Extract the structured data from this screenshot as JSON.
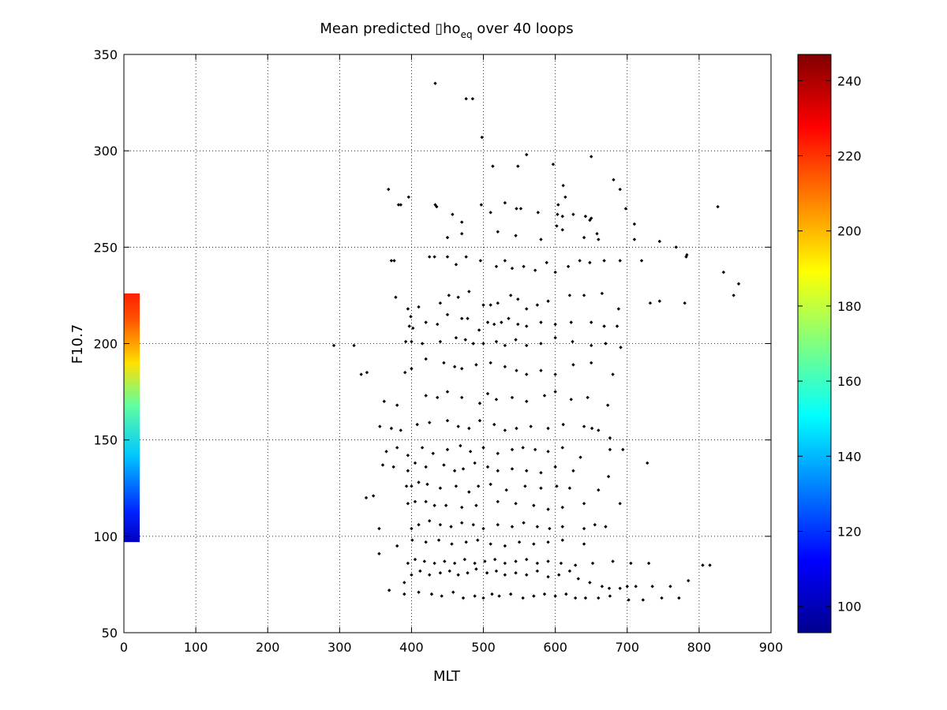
{
  "figure": {
    "title_main": "Mean predicted ▯ho",
    "title_subscript": "eq",
    "title_rest": " over 40 loops"
  },
  "chart_data": {
    "type": "scatter",
    "title": "Mean predicted ▯ho_eq over 40 loops",
    "xlabel": "MLT",
    "ylabel": "F10.7",
    "xlim": [
      0,
      900
    ],
    "ylim": [
      50,
      350
    ],
    "xticks": [
      "0",
      "100",
      "200",
      "300",
      "400",
      "500",
      "600",
      "700",
      "800",
      "900"
    ],
    "yticks": [
      "50",
      "100",
      "150",
      "200",
      "250",
      "300",
      "350"
    ],
    "grid": true,
    "marker_color": "#000000",
    "colormap": "jet",
    "colorbar": {
      "range": [
        93,
        247
      ],
      "ticks": [
        "100",
        "120",
        "140",
        "160",
        "180",
        "200",
        "220",
        "240"
      ]
    },
    "strip": {
      "x_range": [
        0,
        22
      ],
      "y_range": [
        97,
        226
      ],
      "value_range": [
        100,
        226
      ]
    },
    "series": [
      {
        "x": [
          433,
          476,
          485,
          498,
          560,
          513,
          548,
          597,
          650,
          681,
          614,
          611,
          690,
          710,
          368,
          396,
          382,
          385,
          433,
          435,
          457,
          470,
          497,
          510,
          530,
          546,
          552,
          576,
          604,
          603,
          610,
          625,
          642,
          648,
          650,
          658,
          602,
          698,
          826,
          450,
          470,
          520,
          545,
          580,
          610,
          640,
          660,
          710,
          745,
          768,
          372,
          376,
          425,
          432,
          450,
          462,
          476,
          496,
          518,
          530,
          540,
          556,
          572,
          588,
          600,
          618,
          634,
          648,
          668,
          690,
          720,
          782,
          783,
          834,
          855,
          848,
          378,
          395,
          399,
          410,
          440,
          452,
          465,
          480,
          500,
          510,
          520,
          538,
          548,
          560,
          575,
          590,
          620,
          640,
          665,
          688,
          732,
          745,
          780,
          397,
          402,
          420,
          436,
          450,
          470,
          478,
          494,
          506,
          515,
          525,
          535,
          548,
          560,
          580,
          600,
          622,
          650,
          668,
          686,
          292,
          320,
          392,
          400,
          415,
          440,
          462,
          475,
          486,
          500,
          518,
          530,
          545,
          560,
          580,
          600,
          624,
          650,
          670,
          691,
          330,
          338,
          391,
          400,
          420,
          445,
          460,
          470,
          490,
          510,
          530,
          546,
          560,
          580,
          600,
          625,
          650,
          680,
          362,
          380,
          420,
          436,
          450,
          470,
          495,
          506,
          518,
          540,
          560,
          585,
          600,
          622,
          645,
          673,
          356,
          372,
          385,
          408,
          425,
          450,
          465,
          480,
          495,
          515,
          530,
          546,
          566,
          590,
          611,
          640,
          651,
          660,
          676,
          365,
          380,
          395,
          415,
          430,
          450,
          468,
          482,
          500,
          520,
          540,
          555,
          572,
          590,
          610,
          635,
          676,
          694,
          360,
          375,
          395,
          405,
          420,
          445,
          460,
          472,
          488,
          506,
          520,
          540,
          560,
          580,
          600,
          625,
          674,
          728,
          393,
          400,
          410,
          422,
          440,
          462,
          480,
          493,
          510,
          532,
          558,
          580,
          602,
          620,
          660,
          337,
          347,
          395,
          405,
          420,
          432,
          448,
          470,
          490,
          520,
          545,
          570,
          590,
          610,
          640,
          690,
          355,
          400,
          410,
          425,
          440,
          455,
          470,
          486,
          500,
          520,
          540,
          556,
          575,
          592,
          610,
          640,
          655,
          670,
          355,
          380,
          401,
          420,
          438,
          456,
          476,
          492,
          510,
          530,
          550,
          570,
          590,
          610,
          640,
          369,
          390,
          400,
          412,
          425,
          440,
          453,
          465,
          478,
          490,
          505,
          518,
          530,
          545,
          560,
          575,
          590,
          605,
          620,
          632,
          648,
          665,
          675,
          690,
          700,
          712,
          735,
          760,
          785,
          390,
          410,
          428,
          442,
          458,
          472,
          488,
          500,
          512,
          522,
          538,
          555,
          570,
          585,
          600,
          615,
          628,
          642,
          660,
          676,
          702,
          722,
          748,
          772,
          395,
          405,
          418,
          432,
          446,
          460,
          474,
          488,
          502,
          516,
          530,
          545,
          560,
          575,
          590,
          608,
          628,
          652,
          680,
          705,
          730,
          805,
          815
        ],
        "y": [
          335,
          327,
          327,
          307,
          298,
          292,
          292,
          293,
          297,
          285,
          276,
          282,
          280,
          262,
          280,
          276,
          272,
          272,
          272,
          271,
          267,
          263,
          272,
          268,
          273,
          270,
          270,
          268,
          272,
          267,
          266,
          267,
          266,
          264,
          265,
          257,
          261,
          270,
          271,
          255,
          257,
          258,
          256,
          254,
          259,
          255,
          254,
          254,
          253,
          250,
          243,
          243,
          245,
          245,
          245,
          241,
          245,
          243,
          240,
          243,
          239,
          240,
          238,
          242,
          237,
          240,
          243,
          242,
          243,
          243,
          243,
          245,
          246,
          237,
          231,
          225,
          224,
          218,
          214,
          219,
          221,
          225,
          224,
          227,
          220,
          220,
          221,
          225,
          223,
          218,
          220,
          222,
          225,
          225,
          226,
          218,
          221,
          222,
          221,
          209,
          208,
          211,
          210,
          215,
          213,
          213,
          207,
          211,
          210,
          211,
          213,
          210,
          209,
          211,
          210,
          211,
          211,
          209,
          209,
          199,
          199,
          201,
          201,
          200,
          201,
          203,
          202,
          200,
          200,
          201,
          199,
          202,
          199,
          200,
          203,
          201,
          199,
          200,
          198,
          184,
          185,
          185,
          187,
          192,
          190,
          188,
          187,
          189,
          190,
          188,
          186,
          184,
          186,
          184,
          189,
          190,
          184,
          170,
          168,
          173,
          172,
          175,
          172,
          169,
          174,
          171,
          172,
          170,
          173,
          175,
          171,
          172,
          168,
          157,
          156,
          155,
          158,
          159,
          160,
          157,
          156,
          160,
          158,
          155,
          156,
          157,
          156,
          158,
          157,
          156,
          155,
          151,
          144,
          146,
          142,
          146,
          143,
          145,
          147,
          144,
          146,
          143,
          145,
          146,
          145,
          144,
          146,
          141,
          145,
          145,
          137,
          136,
          134,
          138,
          136,
          137,
          134,
          135,
          138,
          136,
          134,
          135,
          134,
          133,
          136,
          134,
          131,
          138,
          126,
          126,
          128,
          127,
          125,
          126,
          123,
          126,
          127,
          124,
          126,
          125,
          126,
          125,
          124,
          120,
          121,
          117,
          118,
          118,
          116,
          116,
          115,
          116,
          118,
          117,
          116,
          114,
          115,
          117,
          117,
          104,
          104,
          106,
          108,
          106,
          105,
          107,
          106,
          104,
          106,
          105,
          107,
          105,
          104,
          105,
          104,
          106,
          105,
          91,
          95,
          98,
          97,
          98,
          96,
          97,
          98,
          96,
          95,
          97,
          96,
          97,
          98,
          96,
          72,
          76,
          80,
          82,
          80,
          81,
          82,
          80,
          81,
          83,
          81,
          82,
          80,
          81,
          80,
          82,
          79,
          80,
          82,
          78,
          76,
          74,
          73,
          73,
          74,
          74,
          74,
          74,
          77,
          70,
          71,
          70,
          69,
          71,
          68,
          69,
          68,
          70,
          69,
          70,
          68,
          69,
          70,
          69,
          70,
          68,
          68,
          68,
          69,
          67,
          67,
          68,
          68,
          86,
          88,
          87,
          86,
          87,
          86,
          88,
          86,
          87,
          88,
          86,
          87,
          88,
          86,
          87,
          86,
          85,
          86,
          87,
          86,
          86,
          85,
          85
        ]
      }
    ]
  }
}
